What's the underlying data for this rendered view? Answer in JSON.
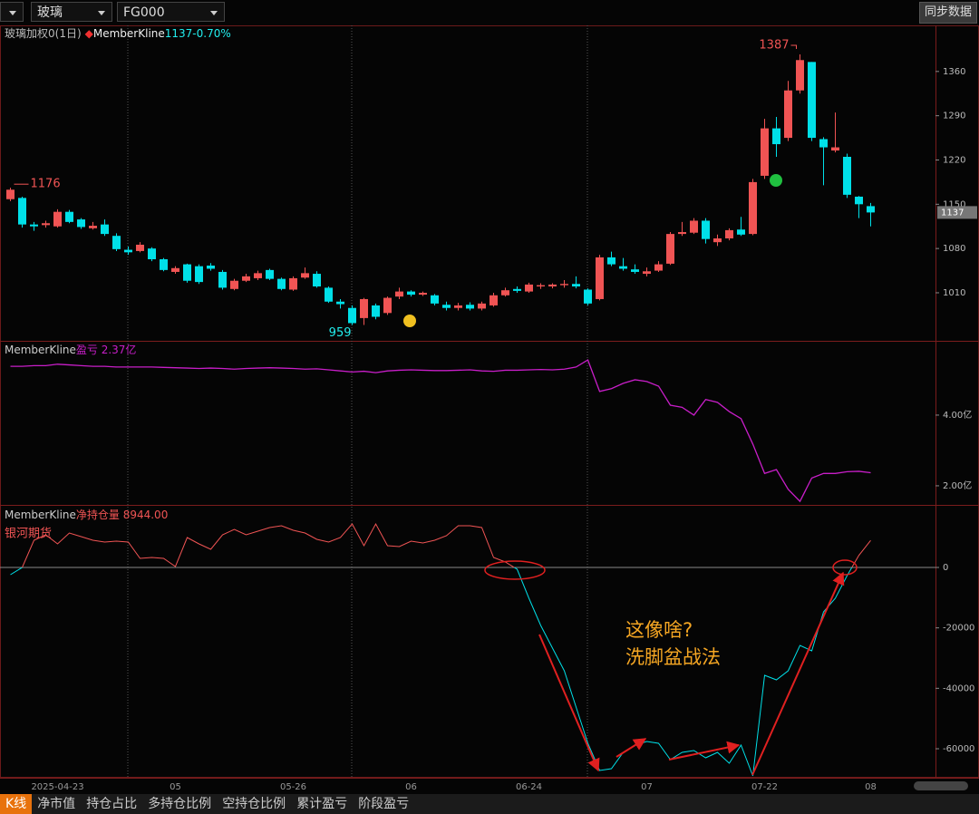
{
  "toolbar": {
    "variety": "玻璃",
    "contract": "FG000",
    "sync_button": "同步数据"
  },
  "tabs": [
    "K线",
    "净市值",
    "持仓占比",
    "多持仓比例",
    "空持仓比例",
    "累计盈亏",
    "阶段盈亏"
  ],
  "chart_data": [
    {
      "type": "candlestick",
      "title": "玻璃加权0(1日)",
      "legend_source": "MemberKline",
      "legend_value": "1137-0.70%",
      "categories": [
        null,
        null,
        null,
        null,
        "2025-04-23",
        null,
        null,
        null,
        null,
        null,
        null,
        null,
        null,
        null,
        "05",
        null,
        null,
        null,
        null,
        null,
        null,
        null,
        null,
        null,
        "05-26",
        null,
        null,
        null,
        null,
        null,
        null,
        null,
        null,
        null,
        "06",
        null,
        null,
        null,
        null,
        null,
        null,
        null,
        null,
        null,
        "06-24",
        null,
        null,
        null,
        null,
        null,
        null,
        null,
        null,
        null,
        "07",
        null,
        null,
        null,
        null,
        null,
        null,
        null,
        null,
        null,
        "07-22",
        null,
        null,
        null,
        null,
        null,
        null,
        null,
        null,
        "08"
      ],
      "open": [
        1158,
        1160,
        1118,
        1117,
        1115,
        1138,
        1126,
        1112,
        1118,
        1100,
        1078,
        1076,
        1080,
        1063,
        1043,
        1055,
        1052,
        1053,
        1043,
        1016,
        1029,
        1033,
        1046,
        1032,
        1015,
        1034,
        1040,
        1018,
        996,
        986,
        970,
        990,
        978,
        1004,
        1012,
        1007,
        1006,
        991,
        986,
        991,
        985,
        990,
        1006,
        1016,
        1012,
        1020,
        1020,
        1022,
        1024,
        1015,
        1000,
        1066,
        1052,
        1047,
        1040,
        1045,
        1056,
        1103,
        1105,
        1124,
        1090,
        1096,
        1110,
        1103,
        1195,
        1270,
        1255,
        1330,
        1375,
        1253,
        1235,
        1225,
        1162,
        1147
      ],
      "high": [
        1176,
        1162,
        1122,
        1124,
        1142,
        1141,
        1128,
        1122,
        1126,
        1104,
        1083,
        1090,
        1082,
        1065,
        1052,
        1056,
        1055,
        1057,
        1046,
        1032,
        1040,
        1045,
        1048,
        1034,
        1036,
        1050,
        1044,
        1020,
        1000,
        990,
        1002,
        993,
        1004,
        1018,
        1014,
        1012,
        1008,
        996,
        994,
        995,
        996,
        1010,
        1018,
        1020,
        1026,
        1025,
        1025,
        1030,
        1036,
        1017,
        1070,
        1075,
        1065,
        1055,
        1050,
        1060,
        1106,
        1122,
        1128,
        1128,
        1102,
        1112,
        1130,
        1190,
        1285,
        1288,
        1345,
        1387,
        1375,
        1256,
        1295,
        1230,
        1163,
        1152
      ],
      "low": [
        1155,
        1113,
        1108,
        1113,
        1113,
        1120,
        1111,
        1110,
        1100,
        1076,
        1070,
        1074,
        1060,
        1044,
        1040,
        1026,
        1024,
        1045,
        1015,
        1014,
        1027,
        1030,
        1030,
        1014,
        1013,
        1032,
        1018,
        994,
        985,
        959,
        959,
        968,
        975,
        1000,
        1004,
        1005,
        990,
        982,
        982,
        982,
        982,
        988,
        1004,
        1010,
        1010,
        1016,
        1017,
        1018,
        1017,
        990,
        998,
        1052,
        1045,
        1040,
        1036,
        1043,
        1054,
        1100,
        1103,
        1088,
        1084,
        1093,
        1100,
        1101,
        1190,
        1225,
        1250,
        1325,
        1250,
        1180,
        1232,
        1160,
        1128,
        1115
      ],
      "close": [
        1173,
        1118,
        1115,
        1120,
        1138,
        1122,
        1114,
        1116,
        1103,
        1079,
        1074,
        1086,
        1063,
        1046,
        1049,
        1029,
        1027,
        1048,
        1018,
        1029,
        1036,
        1041,
        1032,
        1016,
        1033,
        1041,
        1020,
        996,
        992,
        962,
        1000,
        972,
        1002,
        1012,
        1007,
        1010,
        993,
        986,
        990,
        985,
        993,
        1006,
        1014,
        1013,
        1023,
        1022,
        1023,
        1024,
        1020,
        993,
        1066,
        1055,
        1048,
        1043,
        1044,
        1055,
        1103,
        1106,
        1124,
        1095,
        1096,
        1109,
        1102,
        1185,
        1270,
        1245,
        1330,
        1378,
        1255,
        1240,
        1240,
        1165,
        1150,
        1137
      ],
      "up_color": "#f05454",
      "down_color": "#00e0e8",
      "ylim": [
        934,
        1430
      ],
      "yticks": [
        1010,
        1080,
        1150,
        1220,
        1290,
        1360
      ]
    },
    {
      "type": "line",
      "source": "MemberKline",
      "title": "盈亏 2.37亿",
      "series": [
        {
          "name": "盈亏",
          "color": "#c81ec8",
          "values": [
            5.38,
            5.38,
            5.4,
            5.4,
            5.44,
            5.42,
            5.4,
            5.38,
            5.38,
            5.36,
            5.36,
            5.36,
            5.36,
            5.35,
            5.34,
            5.33,
            5.32,
            5.33,
            5.32,
            5.3,
            5.32,
            5.33,
            5.34,
            5.33,
            5.32,
            5.3,
            5.31,
            5.28,
            5.25,
            5.22,
            5.24,
            5.2,
            5.25,
            5.27,
            5.28,
            5.27,
            5.26,
            5.26,
            5.27,
            5.28,
            5.25,
            5.24,
            5.27,
            5.27,
            5.28,
            5.29,
            5.28,
            5.3,
            5.36,
            5.56,
            4.67,
            4.75,
            4.9,
            5.0,
            4.95,
            4.82,
            4.28,
            4.22,
            4.0,
            4.44,
            4.36,
            4.1,
            3.9,
            3.18,
            2.35,
            2.46,
            1.9,
            1.56,
            2.22,
            2.35,
            2.35,
            2.4,
            2.41,
            2.37
          ]
        }
      ],
      "ylim": [
        1.46,
        6.05
      ],
      "yticks": [
        {
          "value": 4,
          "label": "4.00亿"
        },
        {
          "value": 2,
          "label": "2.00亿"
        }
      ]
    },
    {
      "type": "line",
      "source": "MemberKline",
      "title": "净持仓量 8944.00",
      "series": [
        {
          "name": "银河期货",
          "color": "#f05454",
          "negative_color": "#00e0e8",
          "values": [
            -2400,
            0,
            9000,
            10800,
            7800,
            11400,
            10200,
            9000,
            8400,
            8700,
            8400,
            3000,
            3300,
            3000,
            300,
            9900,
            7800,
            6000,
            10800,
            12600,
            10800,
            12000,
            13200,
            13800,
            12300,
            11400,
            9300,
            8400,
            9900,
            14400,
            7200,
            14400,
            7200,
            6900,
            8700,
            8100,
            9000,
            10500,
            13800,
            13800,
            13200,
            3300,
            1800,
            -600,
            -10200,
            -19200,
            -26700,
            -34200,
            -46200,
            -58200,
            -67200,
            -66600,
            -61200,
            -58800,
            -57600,
            -58200,
            -63600,
            -61200,
            -60600,
            -63000,
            -61200,
            -64800,
            -58800,
            -69000,
            -35700,
            -37200,
            -34200,
            -25800,
            -27600,
            -14700,
            -10200,
            -2700,
            4000,
            8944
          ]
        }
      ],
      "ylim": [
        -69300,
        19800
      ],
      "yticks": [
        0,
        -20000,
        -40000,
        -60000
      ],
      "zero_line": true,
      "annotations": [
        "这像啥?",
        "洗脚盆战法"
      ]
    }
  ]
}
